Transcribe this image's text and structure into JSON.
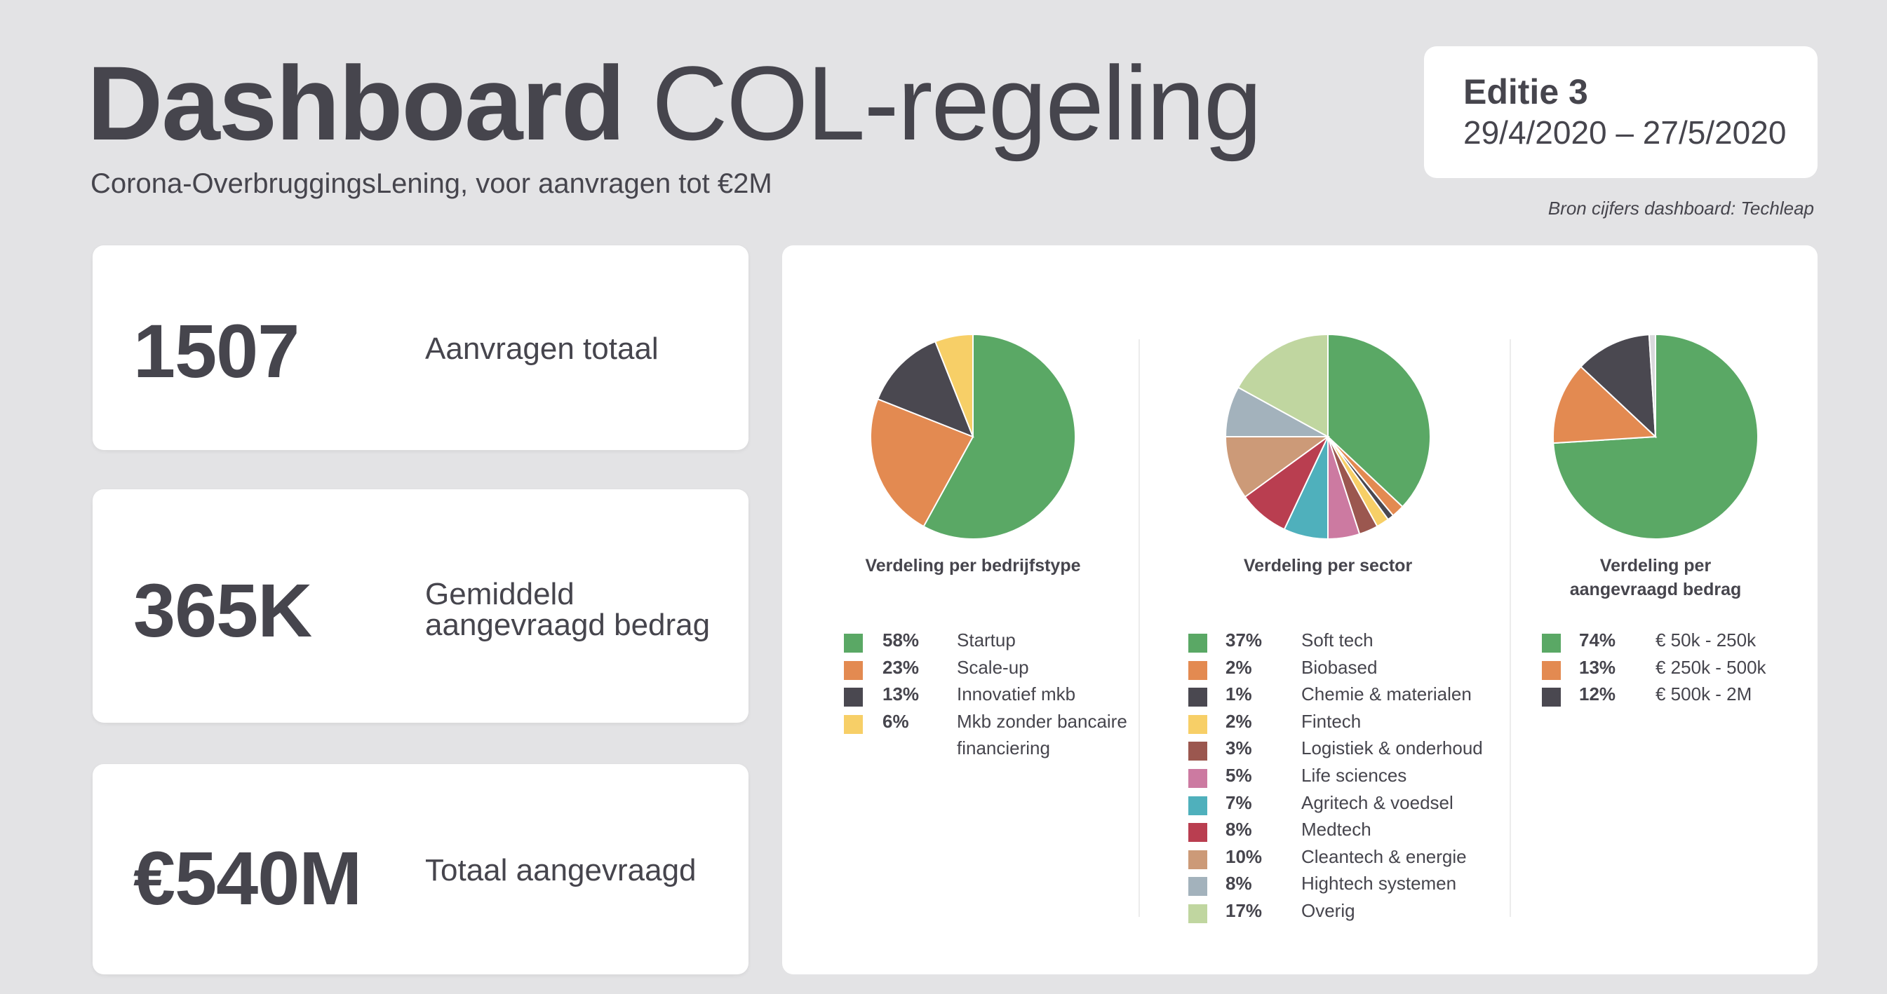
{
  "header": {
    "title_bold": "Dashboard",
    "title_rest": "COL-regeling",
    "subtitle": "Corona-OverbruggingsLening, voor aanvragen tot €2M",
    "edition_label": "Editie 3",
    "edition_dates": "29/4/2020 – 27/5/2020",
    "source": "Bron cijfers dashboard: Techleap"
  },
  "kpis": [
    {
      "value": "1507",
      "label": "Aanvragen totaal"
    },
    {
      "value": "365K",
      "label": "Gemiddeld aangevraagd bedrag"
    },
    {
      "value": "€540M",
      "label": "Totaal aangevraagd"
    }
  ],
  "chart_data": [
    {
      "type": "pie",
      "title": "Verdeling per bedrijfstype",
      "categories": [
        "Startup",
        "Scale-up",
        "Innovatief mkb",
        "Mkb zonder bancaire financiering"
      ],
      "values": [
        58,
        23,
        13,
        6
      ],
      "labels": [
        "58%",
        "23%",
        "13%",
        "6%"
      ],
      "colors": [
        "#5aa865",
        "#e38a51",
        "#4a4850",
        "#f7cf67"
      ]
    },
    {
      "type": "pie",
      "title": "Verdeling per sector",
      "categories": [
        "Soft tech",
        "Biobased",
        "Chemie & materialen",
        "Fintech",
        "Logistiek & onderhoud",
        "Life sciences",
        "Agritech & voedsel",
        "Medtech",
        "Cleantech & energie",
        "Hightech systemen",
        "Overig"
      ],
      "values": [
        37,
        2,
        1,
        2,
        3,
        5,
        7,
        8,
        10,
        8,
        17
      ],
      "labels": [
        "37%",
        "2%",
        "1%",
        "2%",
        "3%",
        "5%",
        "7%",
        "8%",
        "10%",
        "8%",
        "17%"
      ],
      "colors": [
        "#5aa865",
        "#e38a51",
        "#4a4850",
        "#f7cf67",
        "#9b574f",
        "#cc7aa1",
        "#4fb0bc",
        "#b93e50",
        "#cc9a78",
        "#a3b2bc",
        "#c0d6a0"
      ]
    },
    {
      "type": "pie",
      "title": "Verdeling per aangevraagd bedrag",
      "categories": [
        "€ 50k - 250k",
        "€ 250k - 500k",
        "€ 500k - 2M"
      ],
      "values": [
        74,
        13,
        12
      ],
      "labels": [
        "74%",
        "13%",
        "12%"
      ],
      "colors": [
        "#5aa865",
        "#e38a51",
        "#4a4850"
      ]
    }
  ]
}
